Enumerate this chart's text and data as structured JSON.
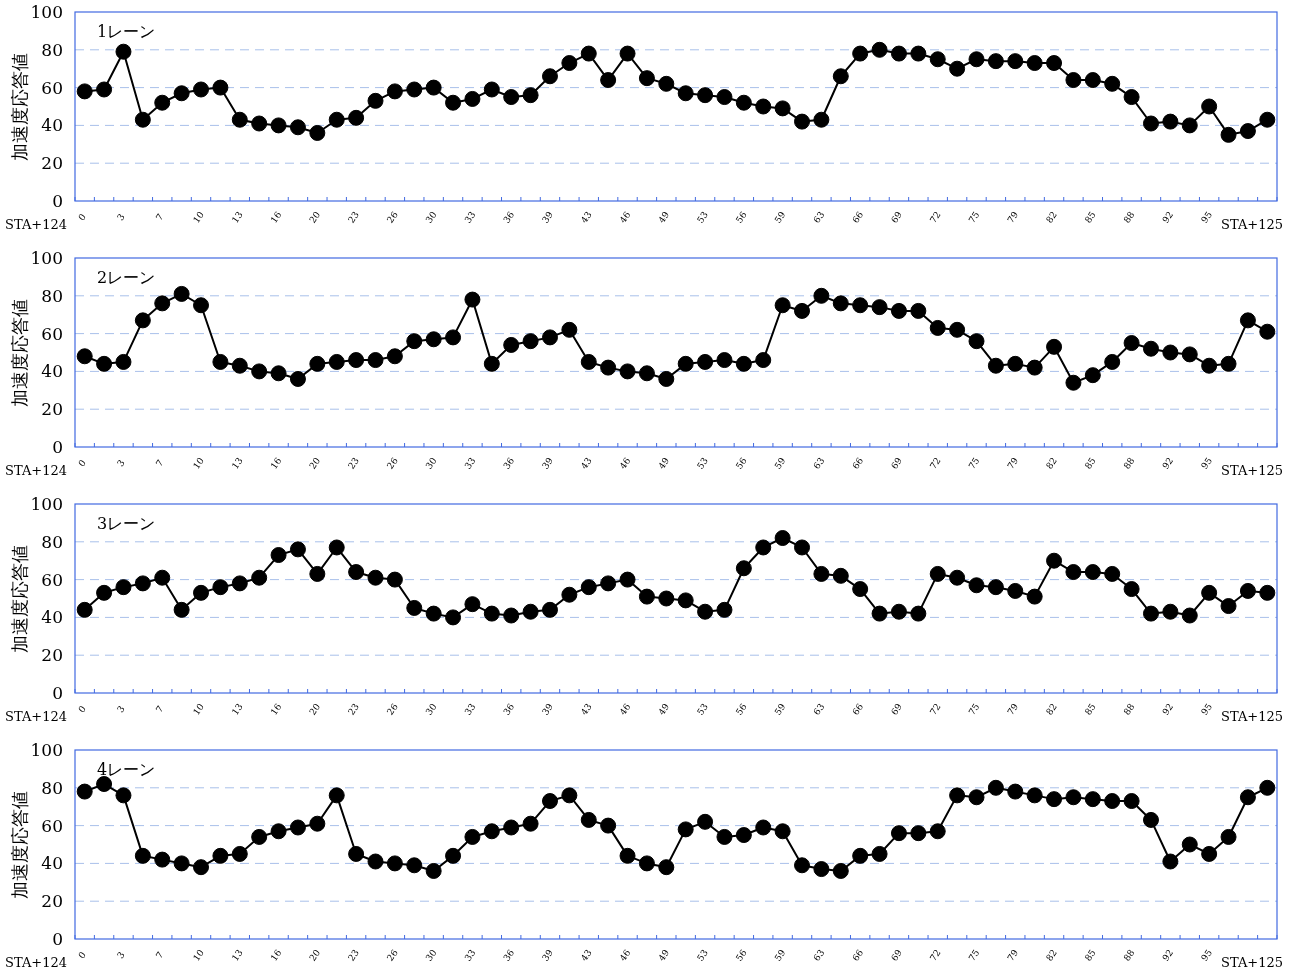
{
  "chart_data": [
    {
      "type": "line",
      "title": "1レーン",
      "ylabel": "加速度応答値",
      "ylim": [
        0,
        100
      ],
      "yticks": [
        0,
        20,
        40,
        60,
        80,
        100
      ],
      "grid": "y",
      "marker": "circle",
      "line_style": "solid",
      "annotations": [
        "STA+124",
        "STA+125"
      ],
      "categories": [
        "0",
        null,
        "3",
        null,
        "7",
        null,
        "10",
        null,
        "13",
        null,
        "16",
        null,
        "20",
        null,
        "23",
        null,
        "26",
        null,
        "30",
        null,
        "33",
        null,
        "36",
        null,
        "39",
        null,
        "43",
        null,
        "46",
        null,
        "49",
        null,
        "53",
        null,
        "56",
        null,
        "59",
        null,
        "63",
        null,
        "66",
        null,
        "69",
        null,
        "72",
        null,
        "75",
        null,
        "79",
        null,
        "82",
        null,
        "85",
        null,
        "88",
        null,
        "92",
        null,
        "95",
        null,
        null,
        null
      ],
      "series": [
        {
          "color": "#000000",
          "values": [
            58,
            59,
            79,
            43,
            52,
            57,
            59,
            60,
            43,
            41,
            40,
            39,
            36,
            43,
            44,
            53,
            58,
            59,
            60,
            52,
            54,
            59,
            55,
            56,
            66,
            73,
            78,
            64,
            78,
            65,
            62,
            57,
            56,
            55,
            52,
            50,
            49,
            42,
            43,
            66,
            78,
            80,
            78,
            78,
            75,
            70,
            75,
            74,
            74,
            73,
            73,
            64,
            64,
            62,
            55,
            41,
            42,
            40,
            50,
            35,
            37,
            43
          ]
        }
      ]
    },
    {
      "type": "line",
      "title": "2レーン",
      "ylabel": "加速度応答値",
      "ylim": [
        0,
        100
      ],
      "yticks": [
        0,
        20,
        40,
        60,
        80,
        100
      ],
      "grid": "y",
      "marker": "circle",
      "line_style": "solid",
      "annotations": [
        "STA+124",
        "STA+125"
      ],
      "categories": [
        "0",
        null,
        "3",
        null,
        "7",
        null,
        "10",
        null,
        "13",
        null,
        "16",
        null,
        "20",
        null,
        "23",
        null,
        "26",
        null,
        "30",
        null,
        "33",
        null,
        "36",
        null,
        "39",
        null,
        "43",
        null,
        "46",
        null,
        "49",
        null,
        "53",
        null,
        "56",
        null,
        "59",
        null,
        "63",
        null,
        "66",
        null,
        "69",
        null,
        "72",
        null,
        "75",
        null,
        "79",
        null,
        "82",
        null,
        "85",
        null,
        "88",
        null,
        "92",
        null,
        "95",
        null,
        null,
        null
      ],
      "series": [
        {
          "color": "#000000",
          "values": [
            48,
            44,
            45,
            67,
            76,
            81,
            75,
            45,
            43,
            40,
            39,
            36,
            44,
            45,
            46,
            46,
            48,
            56,
            57,
            58,
            78,
            44,
            54,
            56,
            58,
            62,
            45,
            42,
            40,
            39,
            36,
            44,
            45,
            46,
            44,
            46,
            75,
            72,
            80,
            76,
            75,
            74,
            72,
            72,
            63,
            62,
            56,
            43,
            44,
            42,
            53,
            34,
            38,
            45,
            55,
            52,
            50,
            49,
            43,
            44,
            67,
            61
          ]
        }
      ]
    },
    {
      "type": "line",
      "title": "3レーン",
      "ylabel": "加速度応答値",
      "ylim": [
        0,
        100
      ],
      "yticks": [
        0,
        20,
        40,
        60,
        80,
        100
      ],
      "grid": "y",
      "marker": "circle",
      "line_style": "solid",
      "annotations": [
        "STA+124",
        "STA+125"
      ],
      "categories": [
        "0",
        null,
        "3",
        null,
        "7",
        null,
        "10",
        null,
        "13",
        null,
        "16",
        null,
        "20",
        null,
        "23",
        null,
        "26",
        null,
        "30",
        null,
        "33",
        null,
        "36",
        null,
        "39",
        null,
        "43",
        null,
        "46",
        null,
        "49",
        null,
        "53",
        null,
        "56",
        null,
        "59",
        null,
        "63",
        null,
        "66",
        null,
        "69",
        null,
        "72",
        null,
        "75",
        null,
        "79",
        null,
        "82",
        null,
        "85",
        null,
        "88",
        null,
        "92",
        null,
        "95",
        null,
        null,
        null
      ],
      "series": [
        {
          "color": "#000000",
          "values": [
            44,
            53,
            56,
            58,
            61,
            44,
            53,
            56,
            58,
            61,
            73,
            76,
            63,
            77,
            64,
            61,
            60,
            45,
            42,
            40,
            47,
            42,
            41,
            43,
            44,
            52,
            56,
            58,
            60,
            51,
            50,
            49,
            43,
            44,
            66,
            77,
            82,
            77,
            63,
            62,
            55,
            42,
            43,
            42,
            63,
            61,
            57,
            56,
            54,
            51,
            70,
            64,
            64,
            63,
            55,
            42,
            43,
            41,
            53,
            46,
            54,
            53
          ]
        }
      ]
    },
    {
      "type": "line",
      "title": "4レーン",
      "ylabel": "加速度応答値",
      "ylim": [
        0,
        100
      ],
      "yticks": [
        0,
        20,
        40,
        60,
        80,
        100
      ],
      "grid": "y",
      "marker": "circle",
      "line_style": "solid",
      "annotations": [
        "STA+124",
        "STA+125"
      ],
      "categories": [
        "0",
        null,
        "3",
        null,
        "7",
        null,
        "10",
        null,
        "13",
        null,
        "16",
        null,
        "20",
        null,
        "23",
        null,
        "26",
        null,
        "30",
        null,
        "33",
        null,
        "36",
        null,
        "39",
        null,
        "43",
        null,
        "46",
        null,
        "49",
        null,
        "53",
        null,
        "56",
        null,
        "59",
        null,
        "63",
        null,
        "66",
        null,
        "69",
        null,
        "72",
        null,
        "75",
        null,
        "79",
        null,
        "82",
        null,
        "85",
        null,
        "88",
        null,
        "92",
        null,
        "95",
        null,
        null,
        null
      ],
      "series": [
        {
          "color": "#000000",
          "values": [
            78,
            82,
            76,
            44,
            42,
            40,
            38,
            44,
            45,
            54,
            57,
            59,
            61,
            76,
            45,
            41,
            40,
            39,
            36,
            44,
            54,
            57,
            59,
            61,
            73,
            76,
            63,
            60,
            44,
            40,
            38,
            58,
            62,
            54,
            55,
            59,
            57,
            39,
            37,
            36,
            44,
            45,
            56,
            56,
            57,
            76,
            75,
            80,
            78,
            76,
            74,
            75,
            74,
            73,
            73,
            63,
            41,
            50,
            45,
            54,
            75,
            80
          ]
        }
      ]
    }
  ]
}
